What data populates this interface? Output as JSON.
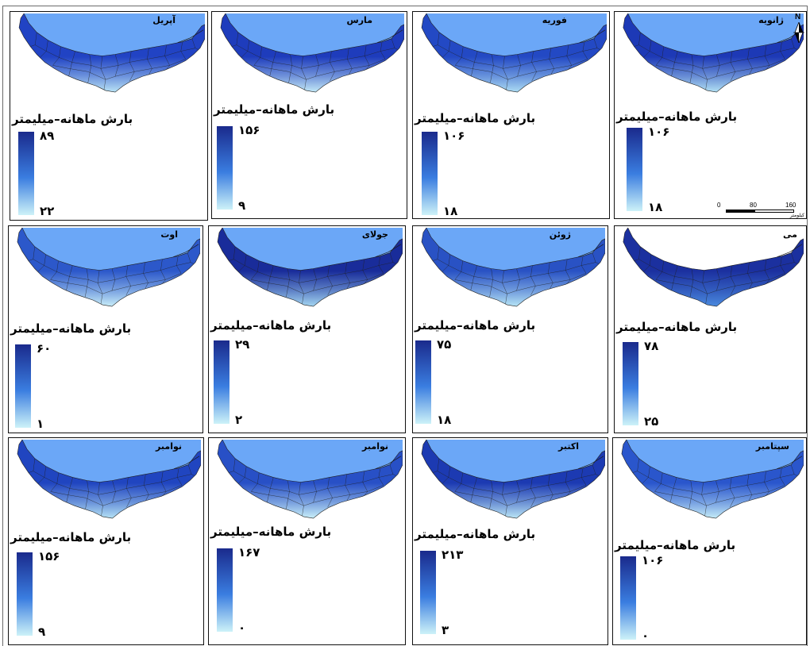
{
  "figure": {
    "legend_title": "بارش ماهانه–میلیمتر",
    "north_arrow": "N",
    "scale_bar": {
      "labels": [
        "0",
        "80",
        "160"
      ],
      "unit": "کیلومتر"
    },
    "colors": {
      "sea": "#6ba7f7",
      "legend_top": "#1a2a8c",
      "legend_mid": "#3a7de0",
      "legend_bottom": "#cdf2f8",
      "boundaries": "#1e1e1e",
      "panel_border": "#111111"
    }
  },
  "panels": [
    {
      "month": "آپریل",
      "legend_max": "۸۹",
      "legend_min": "۲۲",
      "land_dark": "#2143c4",
      "land_light": "#b9e3f5",
      "sea_shown": true
    },
    {
      "month": "مارس",
      "legend_max": "۱۵۶",
      "legend_min": "۹",
      "land_dark": "#1e3cbc",
      "land_light": "#c3e9f7",
      "sea_shown": true
    },
    {
      "month": "فوریه",
      "legend_max": "۱۰۶",
      "legend_min": "۱۸",
      "land_dark": "#2349c4",
      "land_light": "#acdcf3",
      "sea_shown": true
    },
    {
      "month": "ژانویه",
      "legend_max": "۱۰۶",
      "legend_min": "۱۸",
      "land_dark": "#1d39b6",
      "land_light": "#b2e1f4",
      "sea_shown": true
    },
    {
      "month": "اوت",
      "legend_max": "۶۰",
      "legend_min": "۱",
      "land_dark": "#2c58ca",
      "land_light": "#c8edf8",
      "sea_shown": true
    },
    {
      "month": "جولای",
      "legend_max": "۲۹",
      "legend_min": "۲",
      "land_dark": "#192c9a",
      "land_light": "#a3d5f1",
      "sea_shown": true
    },
    {
      "month": "ژوئن",
      "legend_max": "۷۵",
      "legend_min": "۱۸",
      "land_dark": "#2952c4",
      "land_light": "#b6e4f5",
      "sea_shown": true
    },
    {
      "month": "می",
      "legend_max": "۷۸",
      "legend_min": "۲۵",
      "land_dark": "#1b309f",
      "land_light": "#4a8ade",
      "sea_shown": false
    },
    {
      "month": "نوامبر",
      "legend_max": "۱۵۶",
      "legend_min": "۹",
      "land_dark": "#2045c0",
      "land_light": "#b4e1f4",
      "sea_shown": true
    },
    {
      "month": "نوامبر",
      "legend_max": "۱۶۷",
      "legend_min": "۰",
      "land_dark": "#2850c6",
      "land_light": "#c9eff8",
      "sea_shown": true
    },
    {
      "month": "اکتبر",
      "legend_max": "۲۱۳",
      "legend_min": "۳",
      "land_dark": "#1c3ab2",
      "land_light": "#bae5f5",
      "sea_shown": true
    },
    {
      "month": "سپتامبر",
      "legend_max": "۱۰۶",
      "legend_min": "۰",
      "land_dark": "#2a56cc",
      "land_light": "#c4ebf7",
      "sea_shown": true
    }
  ]
}
